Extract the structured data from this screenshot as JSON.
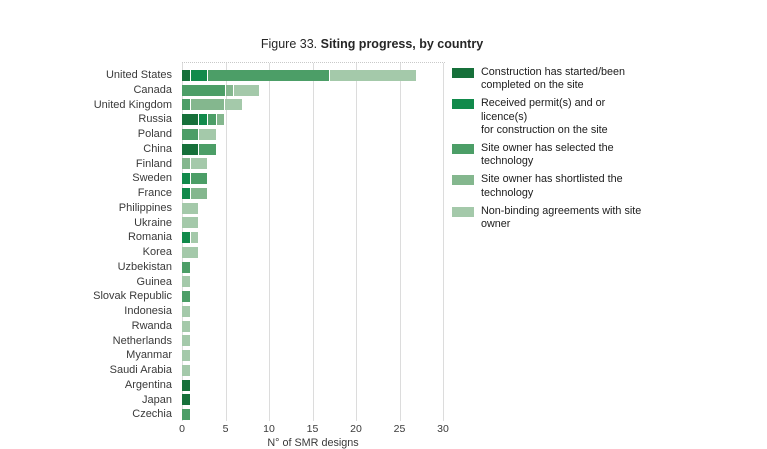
{
  "figure": {
    "title_prefix": "Figure 33.",
    "title_bold": "Siting progress, by country"
  },
  "chart_data": {
    "type": "bar",
    "orientation": "horizontal",
    "stacked": true,
    "title": "Figure 33. Siting progress, by country",
    "xlabel": "N° of SMR designs",
    "xlim": [
      0,
      30
    ],
    "xticks": [
      0,
      5,
      10,
      15,
      20,
      25,
      30
    ],
    "grid": "vertical",
    "legend_position": "right",
    "background": "#ffffff",
    "gridline_color": "#dcdcdc",
    "categories": [
      "United States",
      "Canada",
      "United Kingdom",
      "Russia",
      "Poland",
      "China",
      "Finland",
      "Sweden",
      "France",
      "Philippines",
      "Ukraine",
      "Romania",
      "Korea",
      "Uzbekistan",
      "Guinea",
      "Slovak Republic",
      "Indonesia",
      "Rwanda",
      "Netherlands",
      "Myanmar",
      "Saudi Arabia",
      "Argentina",
      "Japan",
      "Czechia"
    ],
    "series": [
      {
        "name": "Construction has started/been completed on the site",
        "color": "#16703a",
        "values": [
          1,
          0,
          0,
          2,
          0,
          2,
          0,
          0,
          0,
          0,
          0,
          0,
          0,
          0,
          0,
          0,
          0,
          0,
          0,
          0,
          0,
          1,
          1,
          0
        ]
      },
      {
        "name": "Received permit(s) and or licence(s) for construction on the site",
        "color": "#118a4b",
        "values": [
          2,
          0,
          0,
          1,
          0,
          0,
          0,
          1,
          1,
          0,
          0,
          1,
          0,
          0,
          0,
          0,
          0,
          0,
          0,
          0,
          0,
          0,
          0,
          0
        ]
      },
      {
        "name": "Site owner has selected the technology",
        "color": "#4c9e67",
        "values": [
          14,
          5,
          1,
          1,
          2,
          2,
          0,
          2,
          0,
          0,
          0,
          0,
          0,
          1,
          0,
          1,
          0,
          0,
          0,
          0,
          0,
          0,
          0,
          1
        ]
      },
      {
        "name": "Site owner has shortlisted the technology",
        "color": "#84b78e",
        "values": [
          0,
          1,
          4,
          1,
          0,
          0,
          1,
          0,
          2,
          0,
          0,
          0,
          0,
          0,
          0,
          0,
          0,
          0,
          0,
          0,
          0,
          0,
          0,
          0
        ]
      },
      {
        "name": "Non-binding agreements with site owner",
        "color": "#a4c9aa",
        "values": [
          10,
          3,
          2,
          0,
          2,
          0,
          2,
          0,
          0,
          2,
          2,
          1,
          2,
          0,
          1,
          0,
          1,
          1,
          1,
          1,
          1,
          0,
          0,
          0
        ]
      }
    ]
  },
  "legend": {
    "items": [
      {
        "line1": "Construction has started/been",
        "line2": "completed on the site"
      },
      {
        "line1": "Received permit(s) and or licence(s)",
        "line2": "for construction on the site"
      },
      {
        "line1": "Site owner has selected the",
        "line2": "technology"
      },
      {
        "line1": "Site owner has shortlisted the",
        "line2": "technology"
      },
      {
        "line1": "Non-binding agreements with site",
        "line2": "owner"
      }
    ]
  },
  "x_axis": {
    "label": "N° of SMR designs",
    "tick_labels": [
      "0",
      "5",
      "10",
      "15",
      "20",
      "25",
      "30"
    ]
  }
}
